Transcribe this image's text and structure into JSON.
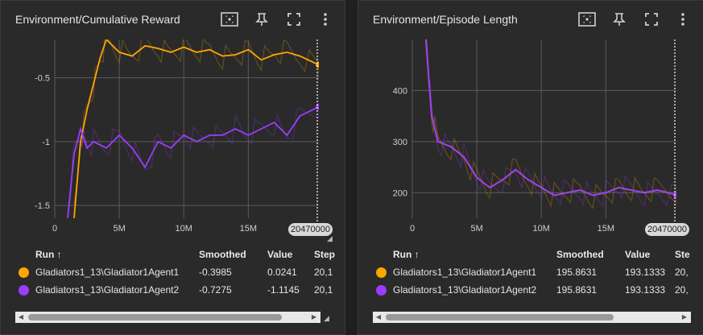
{
  "colors": {
    "orange": "#ffa500",
    "purple": "#9b3dff",
    "bg": "#2a2a2a"
  },
  "icons": [
    "fit-domain-icon",
    "pin-icon",
    "fullscreen-icon",
    "more-vert-icon"
  ],
  "panels": [
    {
      "title": "Environment/Cumulative Reward",
      "y_ticks": [
        "-0.5",
        "-1",
        "-1.5"
      ],
      "x_ticks": [
        "0",
        "5M",
        "10M",
        "15M"
      ],
      "step_badge": "20470000",
      "table": {
        "headers": {
          "run": "Run ↑",
          "smoothed": "Smoothed",
          "value": "Value",
          "step": "Step"
        },
        "rows": [
          {
            "run": "Gladiators1_13\\Gladiator1Agent1",
            "smoothed": "-0.3985",
            "value": "0.0241",
            "step": "20,1"
          },
          {
            "run": "Gladiators1_13\\Gladiator1Agent2",
            "smoothed": "-0.7275",
            "value": "-1.1145",
            "step": "20,1"
          }
        ]
      }
    },
    {
      "title": "Environment/Episode Length",
      "y_ticks": [
        "400",
        "300",
        "200"
      ],
      "x_ticks": [
        "0",
        "5M",
        "10M",
        "15M"
      ],
      "step_badge": "20470000",
      "table": {
        "headers": {
          "run": "Run ↑",
          "smoothed": "Smoothed",
          "value": "Value",
          "step": "Ste"
        },
        "rows": [
          {
            "run": "Gladiators1_13\\Gladiator1Agent1",
            "smoothed": "195.8631",
            "value": "193.1333",
            "step": "20,"
          },
          {
            "run": "Gladiators1_13\\Gladiator1Agent2",
            "smoothed": "195.8631",
            "value": "193.1333",
            "step": "20,"
          }
        ]
      }
    }
  ],
  "chart_data": [
    {
      "type": "line",
      "title": "Environment/Cumulative Reward",
      "xlabel": "",
      "ylabel": "",
      "xlim": [
        0,
        20470000
      ],
      "ylim": [
        -1.6,
        -0.2
      ],
      "grid": true,
      "series": [
        {
          "name": "Gladiators1_13\\Gladiator1Agent1",
          "color": "#ffa500",
          "x": [
            1500000,
            2000000,
            2500000,
            3000000,
            3500000,
            4000000,
            5000000,
            6000000,
            7000000,
            8000000,
            9000000,
            10000000,
            11000000,
            12000000,
            13000000,
            14000000,
            15000000,
            16000000,
            17000000,
            18000000,
            19000000,
            20470000
          ],
          "y": [
            -1.6,
            -1.0,
            -0.75,
            -0.55,
            -0.35,
            -0.2,
            -0.3,
            -0.33,
            -0.25,
            -0.27,
            -0.3,
            -0.26,
            -0.3,
            -0.28,
            -0.33,
            -0.32,
            -0.28,
            -0.36,
            -0.32,
            -0.3,
            -0.33,
            -0.3985
          ]
        },
        {
          "name": "Gladiators1_13\\Gladiator1Agent2",
          "color": "#9b3dff",
          "x": [
            1000000,
            1500000,
            2000000,
            2500000,
            3000000,
            4000000,
            5000000,
            6000000,
            7000000,
            8000000,
            9000000,
            10000000,
            11000000,
            12000000,
            13000000,
            14000000,
            15000000,
            16000000,
            17000000,
            18000000,
            19000000,
            20470000
          ],
          "y": [
            -1.6,
            -1.1,
            -0.9,
            -1.05,
            -1.0,
            -1.05,
            -0.95,
            -1.05,
            -1.2,
            -1.0,
            -1.05,
            -0.95,
            -1.0,
            -0.95,
            -0.95,
            -0.9,
            -0.95,
            -0.9,
            -0.85,
            -0.95,
            -0.8,
            -0.7275
          ]
        }
      ]
    },
    {
      "type": "line",
      "title": "Environment/Episode Length",
      "xlabel": "",
      "ylabel": "",
      "xlim": [
        0,
        20470000
      ],
      "ylim": [
        150,
        500
      ],
      "grid": true,
      "series": [
        {
          "name": "Gladiators1_13\\Gladiator1Agent1",
          "color": "#ffa500",
          "x": [
            1000000,
            1500000,
            2000000,
            3000000,
            4000000,
            5000000,
            6000000,
            7000000,
            8000000,
            9000000,
            10000000,
            11000000,
            12000000,
            13000000,
            14000000,
            15000000,
            16000000,
            17000000,
            18000000,
            19000000,
            20470000
          ],
          "y": [
            520,
            350,
            300,
            290,
            270,
            230,
            210,
            225,
            245,
            225,
            210,
            195,
            200,
            205,
            195,
            200,
            210,
            205,
            200,
            205,
            195.8631
          ]
        },
        {
          "name": "Gladiators1_13\\Gladiator1Agent2",
          "color": "#9b3dff",
          "x": [
            1000000,
            1500000,
            2000000,
            3000000,
            4000000,
            5000000,
            6000000,
            7000000,
            8000000,
            9000000,
            10000000,
            11000000,
            12000000,
            13000000,
            14000000,
            15000000,
            16000000,
            17000000,
            18000000,
            19000000,
            20470000
          ],
          "y": [
            520,
            350,
            300,
            290,
            270,
            230,
            210,
            225,
            245,
            225,
            210,
            195,
            200,
            205,
            195,
            200,
            210,
            205,
            200,
            205,
            195.8631
          ]
        }
      ]
    }
  ]
}
